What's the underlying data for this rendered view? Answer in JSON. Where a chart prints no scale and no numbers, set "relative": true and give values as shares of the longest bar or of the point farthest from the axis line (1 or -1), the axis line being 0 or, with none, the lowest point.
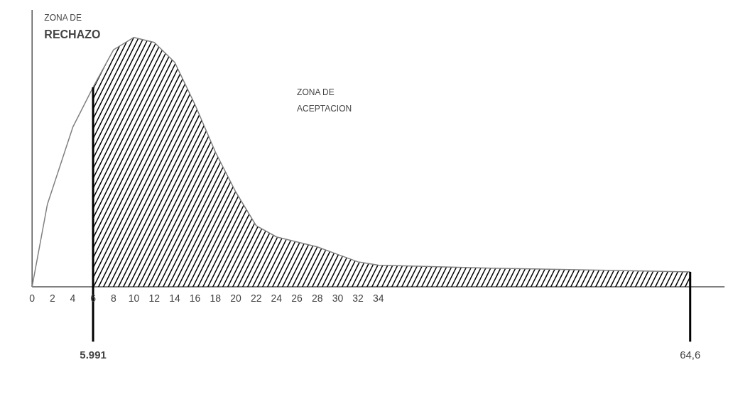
{
  "chart_data": {
    "type": "line",
    "relative": true,
    "tick_labels": "x",
    "grid": false,
    "marker": "none",
    "xlim": [
      0,
      68
    ],
    "xticks": [
      0,
      2,
      4,
      6,
      8,
      10,
      12,
      14,
      16,
      18,
      20,
      22,
      24,
      26,
      28,
      30,
      32,
      34
    ],
    "series": [
      {
        "color": "#808080",
        "x": [
          0,
          1.5,
          4,
          5.991
        ],
        "values": [
          0,
          0.33,
          0.64,
          0.8
        ]
      },
      {
        "type": "area",
        "color": "#000000",
        "x": [
          5.991,
          8,
          10,
          12,
          14,
          16,
          18,
          20,
          22,
          24,
          26,
          28,
          30,
          32,
          34,
          45,
          64.6
        ],
        "values": [
          0.8,
          0.95,
          1,
          0.98,
          0.9,
          0.73,
          0.54,
          0.38,
          0.245,
          0.2,
          0.18,
          0.16,
          0.13,
          0.1,
          0.087,
          0.075,
          0.06
        ]
      }
    ],
    "ref_lines": [
      {
        "axis": "x",
        "value": 5.991,
        "label": "5.991",
        "color": "#000000"
      },
      {
        "axis": "x",
        "value": 64.6,
        "label": "64,6",
        "color": "#000000"
      }
    ],
    "annotations": [
      "ZONA DE RECHAZO",
      "ZONA DE ACEPTACION"
    ]
  }
}
